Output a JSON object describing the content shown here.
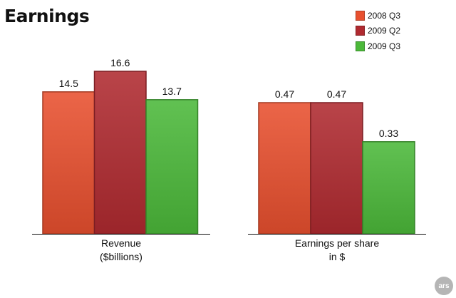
{
  "title": "Earnings",
  "colors": {
    "2008 Q3": "#e8502f",
    "2009 Q2": "#b02a30",
    "2009 Q3": "#4cb93a"
  },
  "badge": "ars",
  "chart_data": [
    {
      "type": "bar",
      "categories": [
        "Revenue\n($billions)"
      ],
      "series": [
        {
          "name": "2008 Q3",
          "values": [
            14.5
          ]
        },
        {
          "name": "2009 Q2",
          "values": [
            16.6
          ]
        },
        {
          "name": "2009 Q3",
          "values": [
            13.7
          ]
        }
      ],
      "data_labels": [
        "14.5",
        "16.6",
        "13.7"
      ],
      "xlabel": "Revenue\n($billions)",
      "ylabel": "",
      "grid": false,
      "legend": "top-right"
    },
    {
      "type": "bar",
      "categories": [
        "Earnings per share\nin $"
      ],
      "series": [
        {
          "name": "2008 Q3",
          "values": [
            0.47
          ]
        },
        {
          "name": "2009 Q2",
          "values": [
            0.47
          ]
        },
        {
          "name": "2009 Q3",
          "values": [
            0.33
          ]
        }
      ],
      "data_labels": [
        "0.47",
        "0.47",
        "0.33"
      ],
      "xlabel": "Earnings per share\nin $",
      "ylabel": "",
      "grid": false,
      "legend": "top-right"
    }
  ]
}
